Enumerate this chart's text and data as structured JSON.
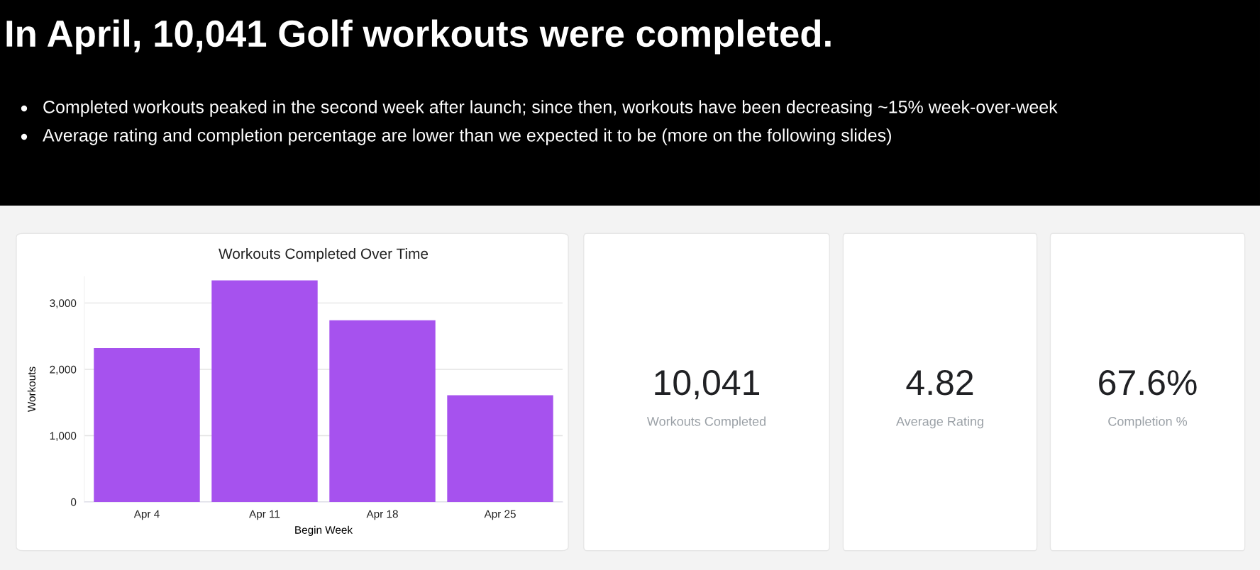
{
  "chart_data": [
    {
      "type": "other",
      "title": "In April, 10,041 Golf workouts were completed.",
      "annotations": [
        "Completed workouts peaked in the second week after launch; since then, workouts have been decreasing ~15% week-over-week",
        "Average rating and completion percentage are lower than we expected it to be (more on the following slides)"
      ]
    },
    {
      "type": "bar",
      "title": "Workouts Completed Over Time",
      "xlabel": "Begin Week",
      "ylabel": "Workouts",
      "categories": [
        "Apr 4",
        "Apr 11",
        "Apr 18",
        "Apr 25"
      ],
      "values": [
        2320,
        3340,
        2740,
        1610
      ],
      "color": "#a652ee",
      "ylim": [
        0,
        3400
      ],
      "yticks": [
        0,
        {
          "value": 1000,
          "label": "1,000"
        },
        {
          "value": 2000,
          "label": "2,000"
        },
        {
          "value": 3000,
          "label": "3,000"
        }
      ],
      "grid": "y"
    },
    {
      "type": "other",
      "title": "10,041",
      "subtitle": "Workouts Completed"
    },
    {
      "type": "other",
      "title": "4.82",
      "subtitle": "Average Rating"
    },
    {
      "type": "other",
      "title": "67.6%",
      "subtitle": "Completion %"
    }
  ]
}
